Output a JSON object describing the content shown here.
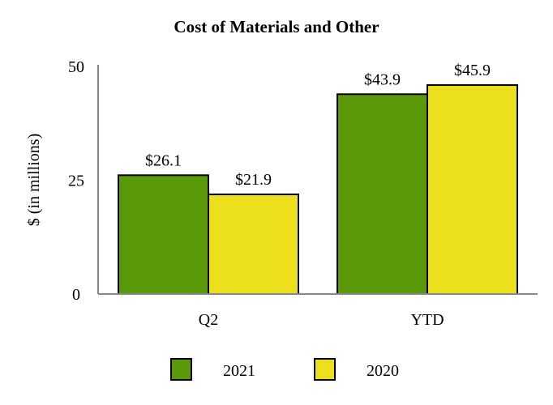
{
  "chart_data": {
    "type": "bar",
    "title": "Cost of Materials and Other",
    "xlabel": "",
    "ylabel": "$ (in millions)",
    "ylim": [
      0,
      50
    ],
    "yticks": [
      "0",
      "25",
      "50"
    ],
    "ytick_values": [
      0,
      25,
      50
    ],
    "categories": [
      "Q2",
      "YTD"
    ],
    "series": [
      {
        "name": "2021",
        "color": "#5a9a0a",
        "values": [
          26.1,
          43.9
        ],
        "labels": [
          "$26.1",
          "$43.9"
        ]
      },
      {
        "name": "2020",
        "color": "#ecdf1c",
        "values": [
          21.9,
          45.9
        ],
        "labels": [
          "$21.9",
          "$45.9"
        ]
      }
    ],
    "legend_position": "bottom"
  }
}
